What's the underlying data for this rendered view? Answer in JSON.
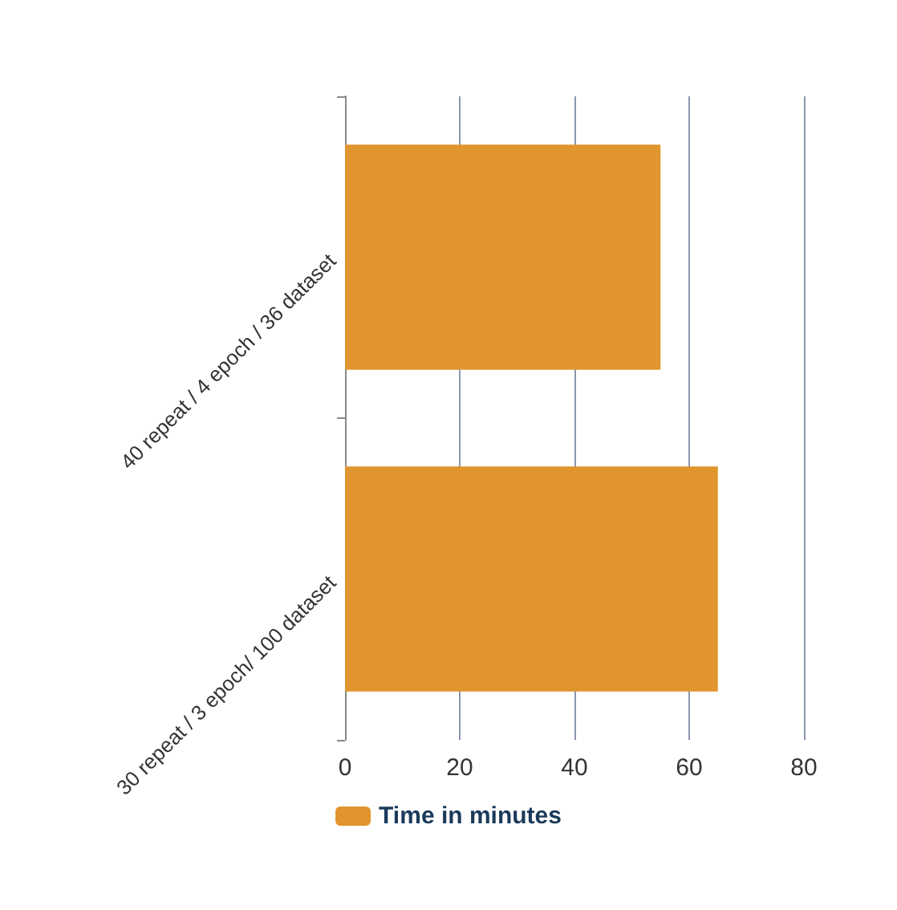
{
  "chart_data": {
    "type": "bar",
    "orientation": "horizontal",
    "categories": [
      "40 repeat / 4 epoch / 36 dataset",
      "30 repeat / 3 epoch/ 100 dataset"
    ],
    "series": [
      {
        "name": "Time in minutes",
        "color": "#e0952e",
        "values": [
          55,
          65
        ]
      }
    ],
    "xlim": [
      0,
      80
    ],
    "xticks": [
      0,
      20,
      40,
      60,
      80
    ],
    "grid": "x",
    "legend": "bottom"
  }
}
